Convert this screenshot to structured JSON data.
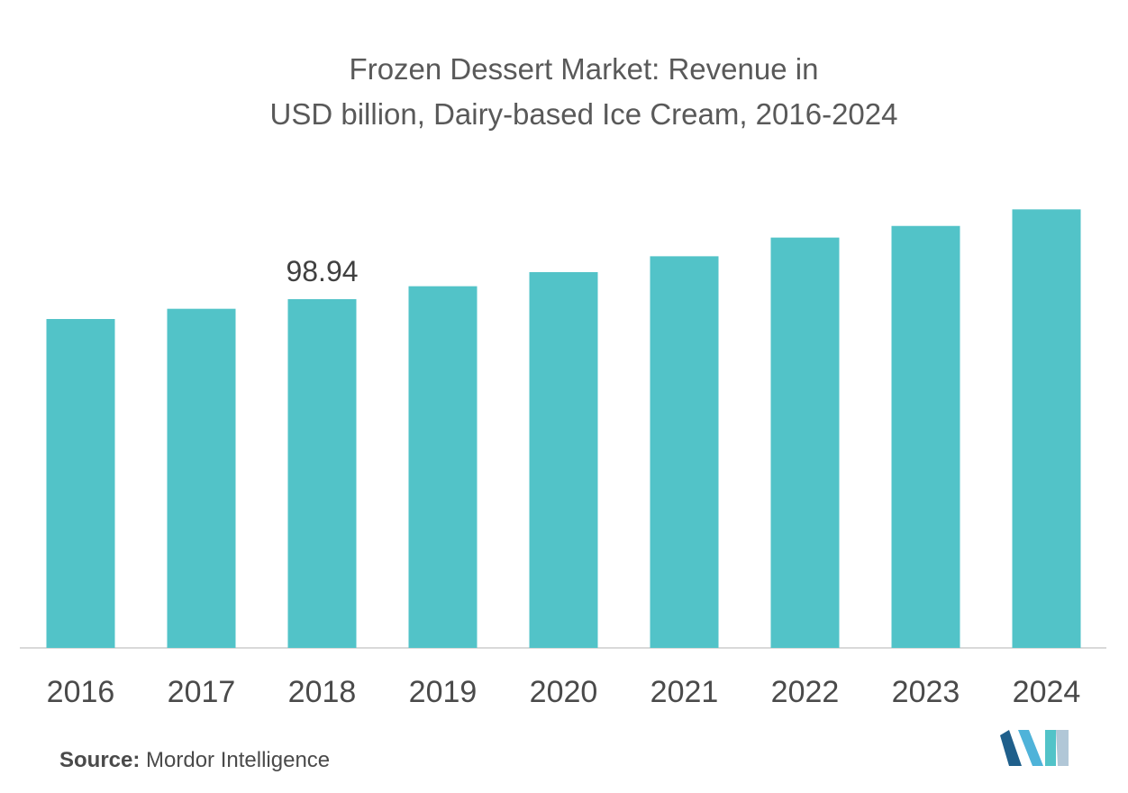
{
  "chart_data": {
    "type": "bar",
    "title_line1": "Frozen Dessert Market: Revenue in",
    "title_line2": "USD billion, Dairy-based Ice Cream, 2016-2024",
    "categories": [
      "2016",
      "2017",
      "2018",
      "2019",
      "2020",
      "2021",
      "2022",
      "2023",
      "2024"
    ],
    "values": [
      93.3,
      96.2,
      98.94,
      102.6,
      106.6,
      111.1,
      116.4,
      119.7,
      124.4
    ],
    "data_labels": [
      "",
      "",
      "98.94",
      "",
      "",
      "",
      "",
      "",
      ""
    ],
    "ylim": [
      0,
      125
    ],
    "grid": false,
    "bar_color": "#52c3c8",
    "axis_color": "#d9d9d9"
  },
  "source": {
    "label": "Source:",
    "text": "Mordor Intelligence"
  },
  "logo": {
    "icon": "mordor-intelligence-logo",
    "colors": [
      "#1f5f8b",
      "#4fb3d9",
      "#52c3c8"
    ]
  }
}
